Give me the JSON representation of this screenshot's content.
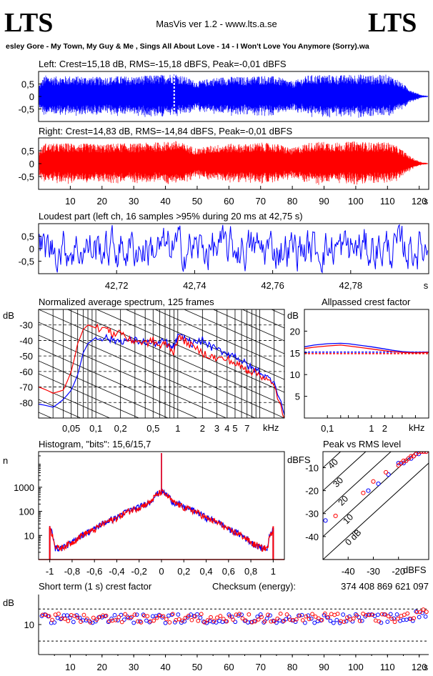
{
  "header": {
    "logo_left": "LTS",
    "logo_right": "LTS",
    "app_title": "MasVis ver 1.2 - www.lts.a.se",
    "track": "esley Gore - My Town, My Guy & Me , Sings All About Love - 14 - I Won't Love You Anymore (Sorry).wa"
  },
  "colors": {
    "left": "#0000ff",
    "right": "#ff0000"
  },
  "panels": {
    "left": {
      "title": "Left: Crest=15,18 dB, RMS=-15,18 dBFS, Peak=-0,01 dBFS"
    },
    "right": {
      "title": "Right: Crest=14,83 dB, RMS=-14,84 dBFS, Peak=-0,01 dBFS"
    },
    "loudest": {
      "title": "Loudest part (left  ch, 16 samples >95% during 20 ms at 42,75 s)"
    },
    "spectrum": {
      "title": "Normalized average spectrum, 125 frames",
      "ylabel": "dB",
      "xunit": "kHz"
    },
    "allpass": {
      "title": "Allpassed crest factor",
      "ylabel": "dB",
      "xunit": "kHz"
    },
    "histogram": {
      "title": "Histogram, \"bits\": 15,6/15,7",
      "ylabel": "n"
    },
    "peakrms": {
      "title": "Peak vs RMS level",
      "ylabel": "dBFS",
      "xunit": "dBFS"
    },
    "shortcrest": {
      "title": "Short term (1 s) crest factor",
      "checksum_label": "Checksum (energy):",
      "checksum_value": "374 408 869 621 097",
      "ylabel": "dB"
    }
  },
  "chart_data": [
    {
      "type": "area",
      "title": "Left: Crest=15,18 dB, RMS=-15,18 dBFS, Peak=-0,01 dBFS",
      "xlim": [
        0,
        123
      ],
      "ylim": [
        -1,
        1
      ],
      "yticks": [
        "0.5",
        "0",
        "-0.5"
      ],
      "yticks_value": [
        0.5,
        0,
        -0.5
      ],
      "marker_time": 42.75,
      "envelope": {
        "x": [
          0,
          2,
          5,
          10,
          15,
          20,
          25,
          30,
          35,
          40,
          43,
          45,
          50,
          55,
          60,
          65,
          70,
          75,
          80,
          85,
          90,
          95,
          100,
          105,
          110,
          113,
          115,
          117,
          119,
          121,
          123
        ],
        "amplitude": [
          0.45,
          0.85,
          0.8,
          0.82,
          0.8,
          0.78,
          0.82,
          0.8,
          0.85,
          0.88,
          0.95,
          0.85,
          0.6,
          0.75,
          0.8,
          0.78,
          0.85,
          0.8,
          0.6,
          0.85,
          0.88,
          0.85,
          0.9,
          0.85,
          0.88,
          0.7,
          0.5,
          0.3,
          0.15,
          0.05,
          0.02
        ]
      }
    },
    {
      "type": "area",
      "title": "Right: Crest=14,83 dB, RMS=-14,84 dBFS, Peak=-0,01 dBFS",
      "xlim": [
        0,
        123
      ],
      "ylim": [
        -1,
        1
      ],
      "yticks": [
        "0.5",
        "0",
        "-0.5"
      ],
      "yticks_value": [
        0.5,
        0,
        -0.5
      ],
      "xticks": [
        10,
        20,
        30,
        40,
        50,
        60,
        70,
        80,
        90,
        100,
        110,
        120
      ],
      "xunit": "s",
      "envelope": {
        "x": [
          0,
          2,
          5,
          10,
          15,
          20,
          25,
          30,
          35,
          40,
          43,
          45,
          50,
          55,
          60,
          65,
          70,
          75,
          80,
          85,
          90,
          95,
          100,
          105,
          110,
          113,
          115,
          117,
          119,
          121,
          123
        ],
        "amplitude": [
          0.5,
          0.8,
          0.78,
          0.8,
          0.78,
          0.75,
          0.8,
          0.78,
          0.82,
          0.85,
          0.9,
          0.82,
          0.6,
          0.72,
          0.78,
          0.76,
          0.82,
          0.78,
          0.6,
          0.82,
          0.86,
          0.82,
          0.88,
          0.82,
          0.85,
          0.68,
          0.5,
          0.3,
          0.15,
          0.05,
          0.02
        ]
      }
    },
    {
      "type": "line",
      "title": "Loudest part (left  ch, 16 samples >95% during 20 ms at 42,75 s)",
      "xlim": [
        42.7,
        42.8
      ],
      "ylim": [
        -1,
        1
      ],
      "yticks": [
        "0.5",
        "0",
        "-0.5"
      ],
      "yticks_value": [
        0.5,
        0,
        -0.5
      ],
      "xticks": [
        "42,72",
        "42,74",
        "42,76",
        "42,78"
      ],
      "xticks_value": [
        42.72,
        42.74,
        42.76,
        42.78
      ],
      "xunit": "s"
    },
    {
      "type": "line",
      "title": "Normalized average spectrum, 125 frames",
      "xscale": "log",
      "xlim": [
        0.02,
        20
      ],
      "ylim": [
        -90,
        -20
      ],
      "ylabel": "dB",
      "xunit": "kHz",
      "yticks": [
        -30,
        -40,
        -50,
        -60,
        -70,
        -80
      ],
      "xticks": [
        "0,05",
        "0,1",
        "0,2",
        "0,5",
        "1",
        "2",
        "3",
        "4",
        "5",
        "7"
      ],
      "xticks_value": [
        0.05,
        0.1,
        0.2,
        0.5,
        1,
        2,
        3,
        4,
        5,
        7
      ],
      "series": [
        {
          "color": "blue",
          "x": [
            0.02,
            0.03,
            0.04,
            0.05,
            0.06,
            0.07,
            0.08,
            0.1,
            0.13,
            0.16,
            0.2,
            0.25,
            0.3,
            0.4,
            0.5,
            0.6,
            0.7,
            0.8,
            0.9,
            1,
            1.2,
            1.5,
            2,
            2.5,
            3,
            4,
            5,
            6,
            7,
            8,
            10,
            12,
            15,
            20
          ],
          "y": [
            -81,
            -83,
            -78,
            -72,
            -62,
            -48,
            -42,
            -38,
            -38,
            -40,
            -40,
            -40,
            -40,
            -41,
            -42,
            -42,
            -40,
            -45,
            -44,
            -38,
            -38,
            -42,
            -40,
            -44,
            -46,
            -48,
            -50,
            -53,
            -56,
            -58,
            -60,
            -64,
            -66,
            -88
          ]
        },
        {
          "color": "red",
          "x": [
            0.02,
            0.03,
            0.04,
            0.05,
            0.06,
            0.07,
            0.08,
            0.1,
            0.13,
            0.16,
            0.2,
            0.25,
            0.3,
            0.4,
            0.5,
            0.6,
            0.7,
            0.8,
            0.9,
            1,
            1.2,
            1.5,
            2,
            2.5,
            3,
            4,
            5,
            6,
            7,
            8,
            10,
            12,
            15,
            20
          ],
          "y": [
            -70,
            -74,
            -72,
            -60,
            -42,
            -33,
            -30,
            -32,
            -32,
            -36,
            -34,
            -40,
            -40,
            -42,
            -40,
            -44,
            -42,
            -44,
            -48,
            -38,
            -40,
            -44,
            -48,
            -50,
            -52,
            -52,
            -55,
            -57,
            -59,
            -60,
            -62,
            -65,
            -70,
            -90
          ]
        }
      ]
    },
    {
      "type": "line",
      "title": "Allpassed crest factor",
      "xscale": "log",
      "xlim": [
        0.03,
        20
      ],
      "ylim": [
        0,
        25
      ],
      "ylabel": "dB",
      "xunit": "kHz",
      "yticks": [
        20,
        15,
        10,
        5
      ],
      "xticks": [
        "0,1",
        "1",
        "2"
      ],
      "xticks_value": [
        0.1,
        1,
        2
      ],
      "series": [
        {
          "color": "blue",
          "x": [
            0.03,
            0.05,
            0.1,
            0.2,
            0.3,
            0.5,
            1,
            2,
            3,
            5,
            10,
            20
          ],
          "y": [
            16.4,
            16.8,
            17.1,
            17.2,
            17.1,
            16.8,
            16.4,
            15.9,
            15.6,
            15.3,
            15.1,
            15.2
          ]
        },
        {
          "color": "red",
          "x": [
            0.03,
            0.05,
            0.1,
            0.2,
            0.3,
            0.5,
            1,
            2,
            3,
            5,
            10,
            20
          ],
          "y": [
            16.0,
            16.3,
            16.6,
            16.8,
            16.6,
            16.3,
            15.9,
            15.5,
            15.3,
            15.1,
            15.0,
            15.1
          ]
        }
      ],
      "reference_lines": [
        {
          "color": "blue",
          "y": 15.18
        },
        {
          "color": "red",
          "y": 14.83
        }
      ]
    },
    {
      "type": "line",
      "title": "Histogram, \"bits\": 15,6/15,7",
      "yscale": "log",
      "xlim": [
        -1.1,
        1.1
      ],
      "ylabel": "n",
      "yticks": [
        "1000",
        "100",
        "10"
      ],
      "yticks_value": [
        1000,
        100,
        10
      ],
      "xticks": [
        "-1",
        "-0,8",
        "-0,6",
        "-0,4",
        "-0,2",
        "0",
        "0,2",
        "0,4",
        "0,6",
        "0,8",
        "1"
      ],
      "xticks_value": [
        -1,
        -0.8,
        -0.6,
        -0.4,
        -0.2,
        0,
        0.2,
        0.4,
        0.6,
        0.8,
        1
      ],
      "series": [
        {
          "color": "blue",
          "x": [
            -1,
            -0.95,
            -0.9,
            -0.8,
            -0.6,
            -0.4,
            -0.2,
            -0.1,
            0,
            0.1,
            0.2,
            0.4,
            0.6,
            0.8,
            0.9,
            0.95,
            1
          ],
          "y": [
            20,
            3,
            3,
            5,
            18,
            55,
            150,
            250,
            700,
            250,
            150,
            55,
            18,
            5,
            3,
            3,
            20
          ]
        },
        {
          "color": "red",
          "x": [
            -1,
            -0.95,
            -0.9,
            -0.8,
            -0.6,
            -0.4,
            -0.2,
            -0.1,
            0,
            0.1,
            0.2,
            0.4,
            0.6,
            0.8,
            0.9,
            0.95,
            1
          ],
          "y": [
            18,
            3,
            3,
            5,
            17,
            52,
            145,
            240,
            650,
            240,
            145,
            52,
            17,
            5,
            3,
            3,
            18
          ]
        }
      ]
    },
    {
      "type": "scatter",
      "title": "Peak vs RMS level",
      "xlim": [
        -50,
        -8
      ],
      "ylim": [
        -50,
        -3
      ],
      "xlabel": "dBFS",
      "ylabel": "dBFS",
      "xticks": [
        -40,
        -30,
        -20
      ],
      "yticks": [
        -10,
        -20,
        -30,
        -40
      ],
      "diagonal_labels": [
        "40",
        "30",
        "20",
        "10",
        "0 dB"
      ],
      "diagonal_values": [
        40,
        30,
        20,
        10,
        0
      ],
      "series": [
        {
          "color": "blue",
          "x": [
            -49,
            -32,
            -28,
            -24,
            -20,
            -19,
            -18,
            -17,
            -16,
            -15,
            -14,
            -13,
            -12,
            -11,
            -10,
            -9
          ],
          "y": [
            -33,
            -20,
            -17,
            -13,
            -8,
            -8,
            -8,
            -7,
            -6,
            -6,
            -5,
            -4,
            -4,
            -3,
            -3,
            -3
          ]
        },
        {
          "color": "red",
          "x": [
            -45,
            -34,
            -30,
            -25,
            -20,
            -19,
            -18,
            -17,
            -16,
            -15,
            -14,
            -13,
            -12,
            -11,
            -10,
            -9
          ],
          "y": [
            -31,
            -21,
            -16,
            -12,
            -9,
            -8,
            -7,
            -7,
            -6,
            -5,
            -5,
            -4,
            -3,
            -3,
            -3,
            -3
          ]
        }
      ]
    },
    {
      "type": "scatter",
      "title": "Short term (1 s) crest factor",
      "xlim": [
        0,
        123
      ],
      "ylim": [
        0,
        20
      ],
      "ylabel": "dB",
      "xunit": "s",
      "yticks": [
        10
      ],
      "xticks": [
        10,
        20,
        30,
        40,
        50,
        60,
        70,
        80,
        90,
        100,
        110,
        120
      ],
      "reference_lines": [
        15.18,
        4.5
      ],
      "series": [
        {
          "color": "blue",
          "note": "one point per second, values fluctuating between about 10.5 and 15",
          "mean": 12.0
        },
        {
          "color": "red",
          "note": "one point per second, values fluctuating between about 10.5 and 15",
          "mean": 12.2
        }
      ]
    }
  ]
}
